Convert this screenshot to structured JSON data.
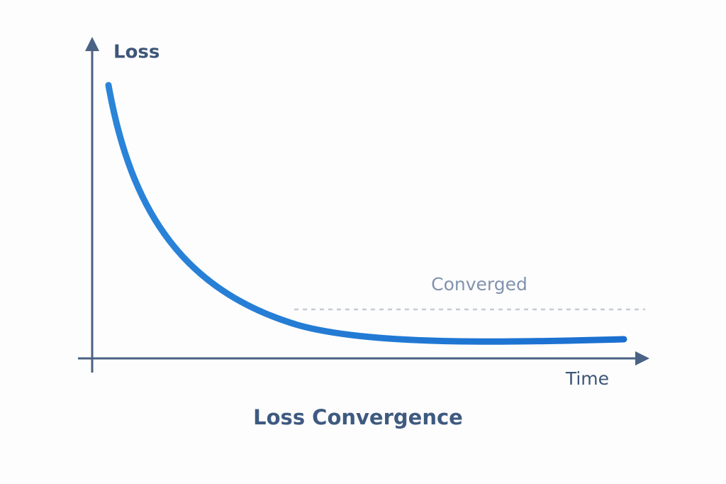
{
  "diagram": {
    "title": "Loss Convergence",
    "y_axis_label": "Loss",
    "x_axis_label": "Time",
    "annotation": "Converged"
  }
}
